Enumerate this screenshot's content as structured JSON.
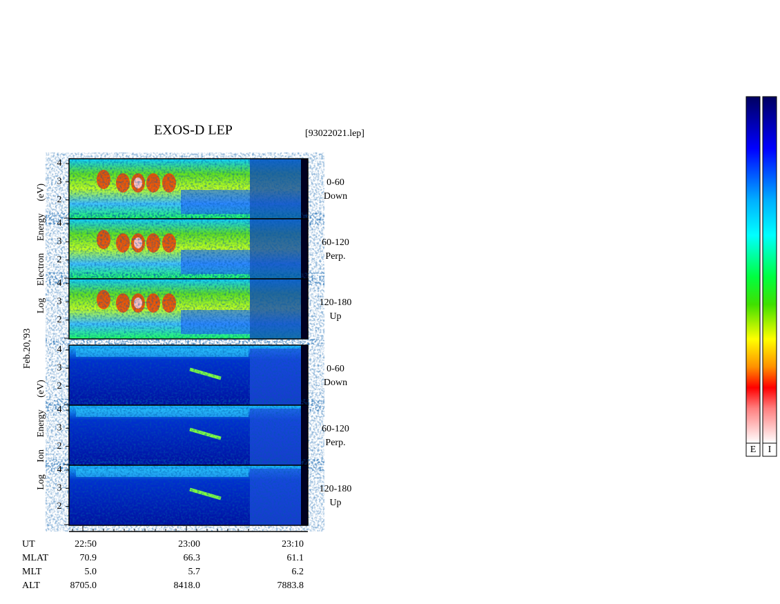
{
  "header": {
    "title": "EXOS-D LEP",
    "file": "[93022021.lep]"
  },
  "date": "Feb.20,'93",
  "electron": {
    "axis_label": "Log Electron Energy (eV)",
    "panels": [
      {
        "angle": "0-60",
        "direction": "Down"
      },
      {
        "angle": "60-120",
        "direction": "Perp."
      },
      {
        "angle": "120-180",
        "direction": "Up"
      }
    ]
  },
  "ion": {
    "axis_label": "Log Ion Energy (eV)",
    "panels": [
      {
        "angle": "0-60",
        "direction": "Down"
      },
      {
        "angle": "60-120",
        "direction": "Perp."
      },
      {
        "angle": "120-180",
        "direction": "Up"
      }
    ]
  },
  "energy_ticks": [
    "4",
    "3",
    "2"
  ],
  "footer": {
    "rows": [
      {
        "label": "UT",
        "values": [
          "22:50",
          "23:00",
          "23:10"
        ]
      },
      {
        "label": "MLAT",
        "values": [
          "70.9",
          "66.3",
          "61.1"
        ]
      },
      {
        "label": "MLT",
        "values": [
          "5.0",
          "5.7",
          "6.2"
        ]
      },
      {
        "label": "ALT",
        "values": [
          "8705.0",
          "8418.0",
          "7883.8"
        ]
      }
    ]
  },
  "colorbars": [
    "E",
    "I"
  ]
}
